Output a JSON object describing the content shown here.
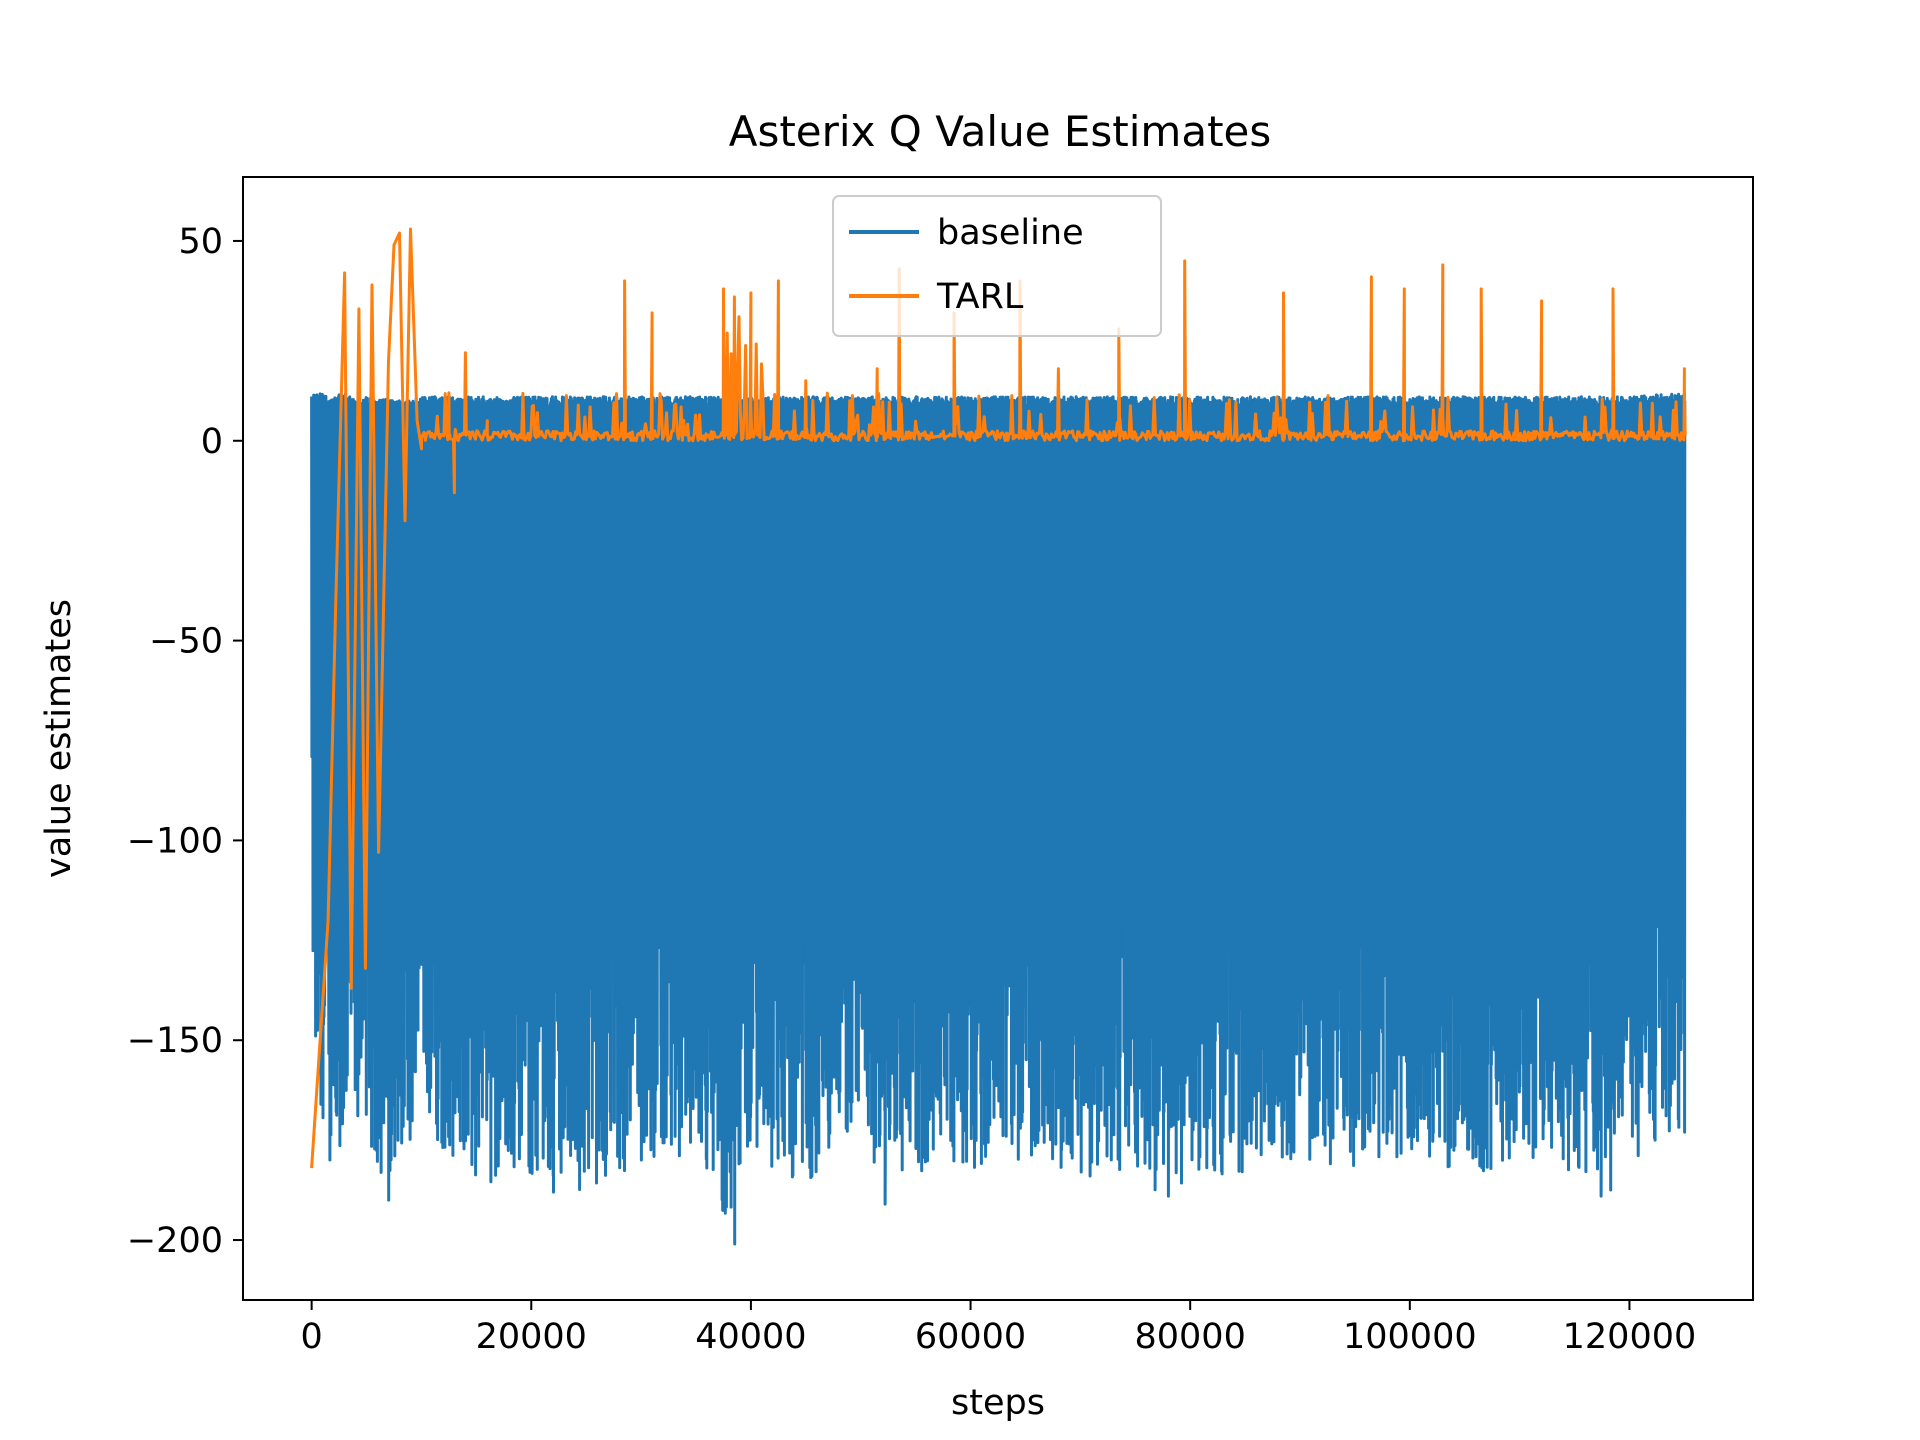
{
  "chart_data": {
    "type": "line",
    "title": "Asterix Q Value Estimates",
    "xlabel": "steps",
    "ylabel": "value estimates",
    "xlim": [
      -6250,
      131250
    ],
    "ylim": [
      -215,
      66
    ],
    "xticks": [
      0,
      20000,
      40000,
      60000,
      80000,
      100000,
      120000
    ],
    "xtick_labels": [
      "0",
      "20000",
      "40000",
      "60000",
      "80000",
      "100000",
      "120000"
    ],
    "yticks": [
      50,
      0,
      -50,
      -100,
      -150,
      -200
    ],
    "ytick_labels": [
      "50",
      "0",
      "−50",
      "−100",
      "−150",
      "−200"
    ],
    "legend": {
      "position": "top-center"
    },
    "series": [
      {
        "name": "baseline",
        "color": "#1f77b4",
        "envelope": {
          "x": [
            0,
            1000,
            2000,
            3000,
            4000,
            5000,
            6000,
            7000,
            8000,
            9000,
            10000,
            15000,
            20000,
            25000,
            30000,
            35000,
            38000,
            40000,
            45000,
            50000,
            52000,
            55000,
            60000,
            65000,
            70000,
            75000,
            78000,
            80000,
            85000,
            90000,
            95000,
            100000,
            105000,
            110000,
            115000,
            118000,
            120000,
            125000
          ],
          "upper": [
            12,
            12,
            11,
            12,
            10,
            11,
            10,
            11,
            10,
            10,
            11,
            11,
            11,
            11,
            11,
            11,
            11,
            11,
            11,
            11,
            11,
            11,
            11,
            11,
            11,
            11,
            11,
            11,
            11,
            11,
            11,
            11,
            11,
            11,
            11,
            11,
            11,
            12
          ],
          "lower": [
            -157,
            -182,
            -185,
            -180,
            -172,
            -176,
            -183,
            -190,
            -178,
            -184,
            -172,
            -186,
            -184,
            -188,
            -181,
            -178,
            -201,
            -180,
            -186,
            -170,
            -191,
            -183,
            -182,
            -180,
            -186,
            -184,
            -190,
            -185,
            -183,
            -180,
            -182,
            -180,
            -184,
            -181,
            -184,
            -189,
            -181,
            -173
          ]
        },
        "spikes": [
          {
            "x": 38500,
            "y": -201
          },
          {
            "x": 52200,
            "y": -191
          },
          {
            "x": 117400,
            "y": -189
          },
          {
            "x": 7000,
            "y": -190
          },
          {
            "x": 78000,
            "y": -189
          },
          {
            "x": 22000,
            "y": -188
          },
          {
            "x": 125000,
            "y": -173
          }
        ]
      },
      {
        "name": "TARL",
        "color": "#ff7f0e",
        "peaks": [
          {
            "x": 0,
            "y": -182
          },
          {
            "x": 1500,
            "y": -120
          },
          {
            "x": 2200,
            "y": -40
          },
          {
            "x": 3000,
            "y": 42
          },
          {
            "x": 3600,
            "y": -137
          },
          {
            "x": 4300,
            "y": 33
          },
          {
            "x": 4900,
            "y": -132
          },
          {
            "x": 5500,
            "y": 39
          },
          {
            "x": 6100,
            "y": -103
          },
          {
            "x": 7000,
            "y": 20
          },
          {
            "x": 7500,
            "y": 49
          },
          {
            "x": 8000,
            "y": 52
          },
          {
            "x": 8500,
            "y": -20
          },
          {
            "x": 9000,
            "y": 53
          },
          {
            "x": 9600,
            "y": 5
          },
          {
            "x": 10000,
            "y": -2
          },
          {
            "x": 12500,
            "y": 12
          },
          {
            "x": 13000,
            "y": -13
          },
          {
            "x": 14000,
            "y": 22
          },
          {
            "x": 16000,
            "y": 5
          },
          {
            "x": 18000,
            "y": 2
          },
          {
            "x": 28500,
            "y": 40
          },
          {
            "x": 31000,
            "y": 32
          },
          {
            "x": 37500,
            "y": 38
          },
          {
            "x": 38500,
            "y": 36
          },
          {
            "x": 40000,
            "y": 37
          },
          {
            "x": 42500,
            "y": 40
          },
          {
            "x": 45000,
            "y": 15
          },
          {
            "x": 49000,
            "y": 10
          },
          {
            "x": 51500,
            "y": 18
          },
          {
            "x": 53500,
            "y": 43
          },
          {
            "x": 58500,
            "y": 32
          },
          {
            "x": 64500,
            "y": 40
          },
          {
            "x": 68000,
            "y": 18
          },
          {
            "x": 73500,
            "y": 28
          },
          {
            "x": 79500,
            "y": 45
          },
          {
            "x": 88500,
            "y": 37
          },
          {
            "x": 96500,
            "y": 41
          },
          {
            "x": 99500,
            "y": 38
          },
          {
            "x": 103000,
            "y": 44
          },
          {
            "x": 106500,
            "y": 38
          },
          {
            "x": 112000,
            "y": 35
          },
          {
            "x": 118500,
            "y": 38
          },
          {
            "x": 125000,
            "y": 18
          }
        ],
        "baseline_value": 0,
        "end_value": 12
      }
    ]
  }
}
